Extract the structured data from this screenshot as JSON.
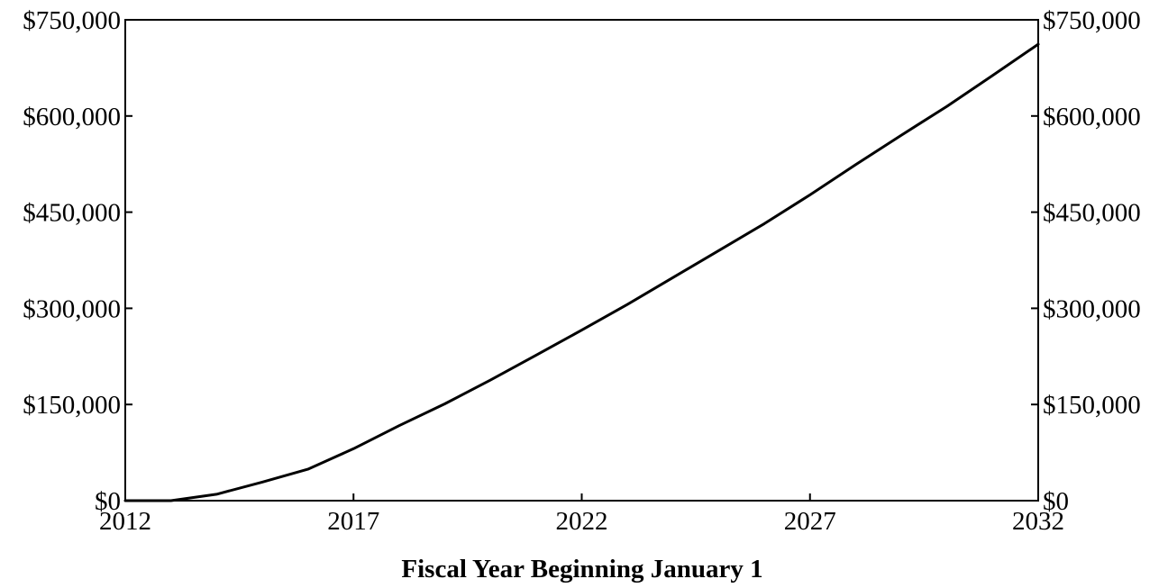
{
  "chart_data": {
    "type": "line",
    "title": "",
    "xlabel": "Fiscal Year Beginning January 1",
    "ylabel": "",
    "xlim": [
      2012,
      2032
    ],
    "ylim": [
      0,
      750000
    ],
    "x_ticks": [
      2012,
      2017,
      2022,
      2027,
      2032
    ],
    "x_tick_labels": [
      "2012",
      "2017",
      "2022",
      "2027",
      "2032"
    ],
    "y_ticks": [
      0,
      150000,
      300000,
      450000,
      600000,
      750000
    ],
    "y_tick_labels": [
      "$0",
      "$150,000",
      "$300,000",
      "$450,000",
      "$600,000",
      "$750,000"
    ],
    "right_axis_tick_labels": [
      "$0",
      "$150,000",
      "$300,000",
      "$450,000",
      "$600,000",
      "$750,000"
    ],
    "grid": false,
    "legend": "none",
    "series": [
      {
        "color": "#000000",
        "x": [
          2012,
          2013,
          2014,
          2015,
          2016,
          2017,
          2018,
          2019,
          2020,
          2021,
          2022,
          2023,
          2024,
          2025,
          2026,
          2027,
          2028,
          2029,
          2030,
          2031,
          2032
        ],
        "values": [
          0,
          0,
          10000,
          29000,
          49000,
          81000,
          117000,
          151000,
          188000,
          227000,
          266000,
          306000,
          348000,
          390000,
          432000,
          477000,
          524000,
          570000,
          615000,
          663000,
          712000
        ]
      }
    ]
  }
}
